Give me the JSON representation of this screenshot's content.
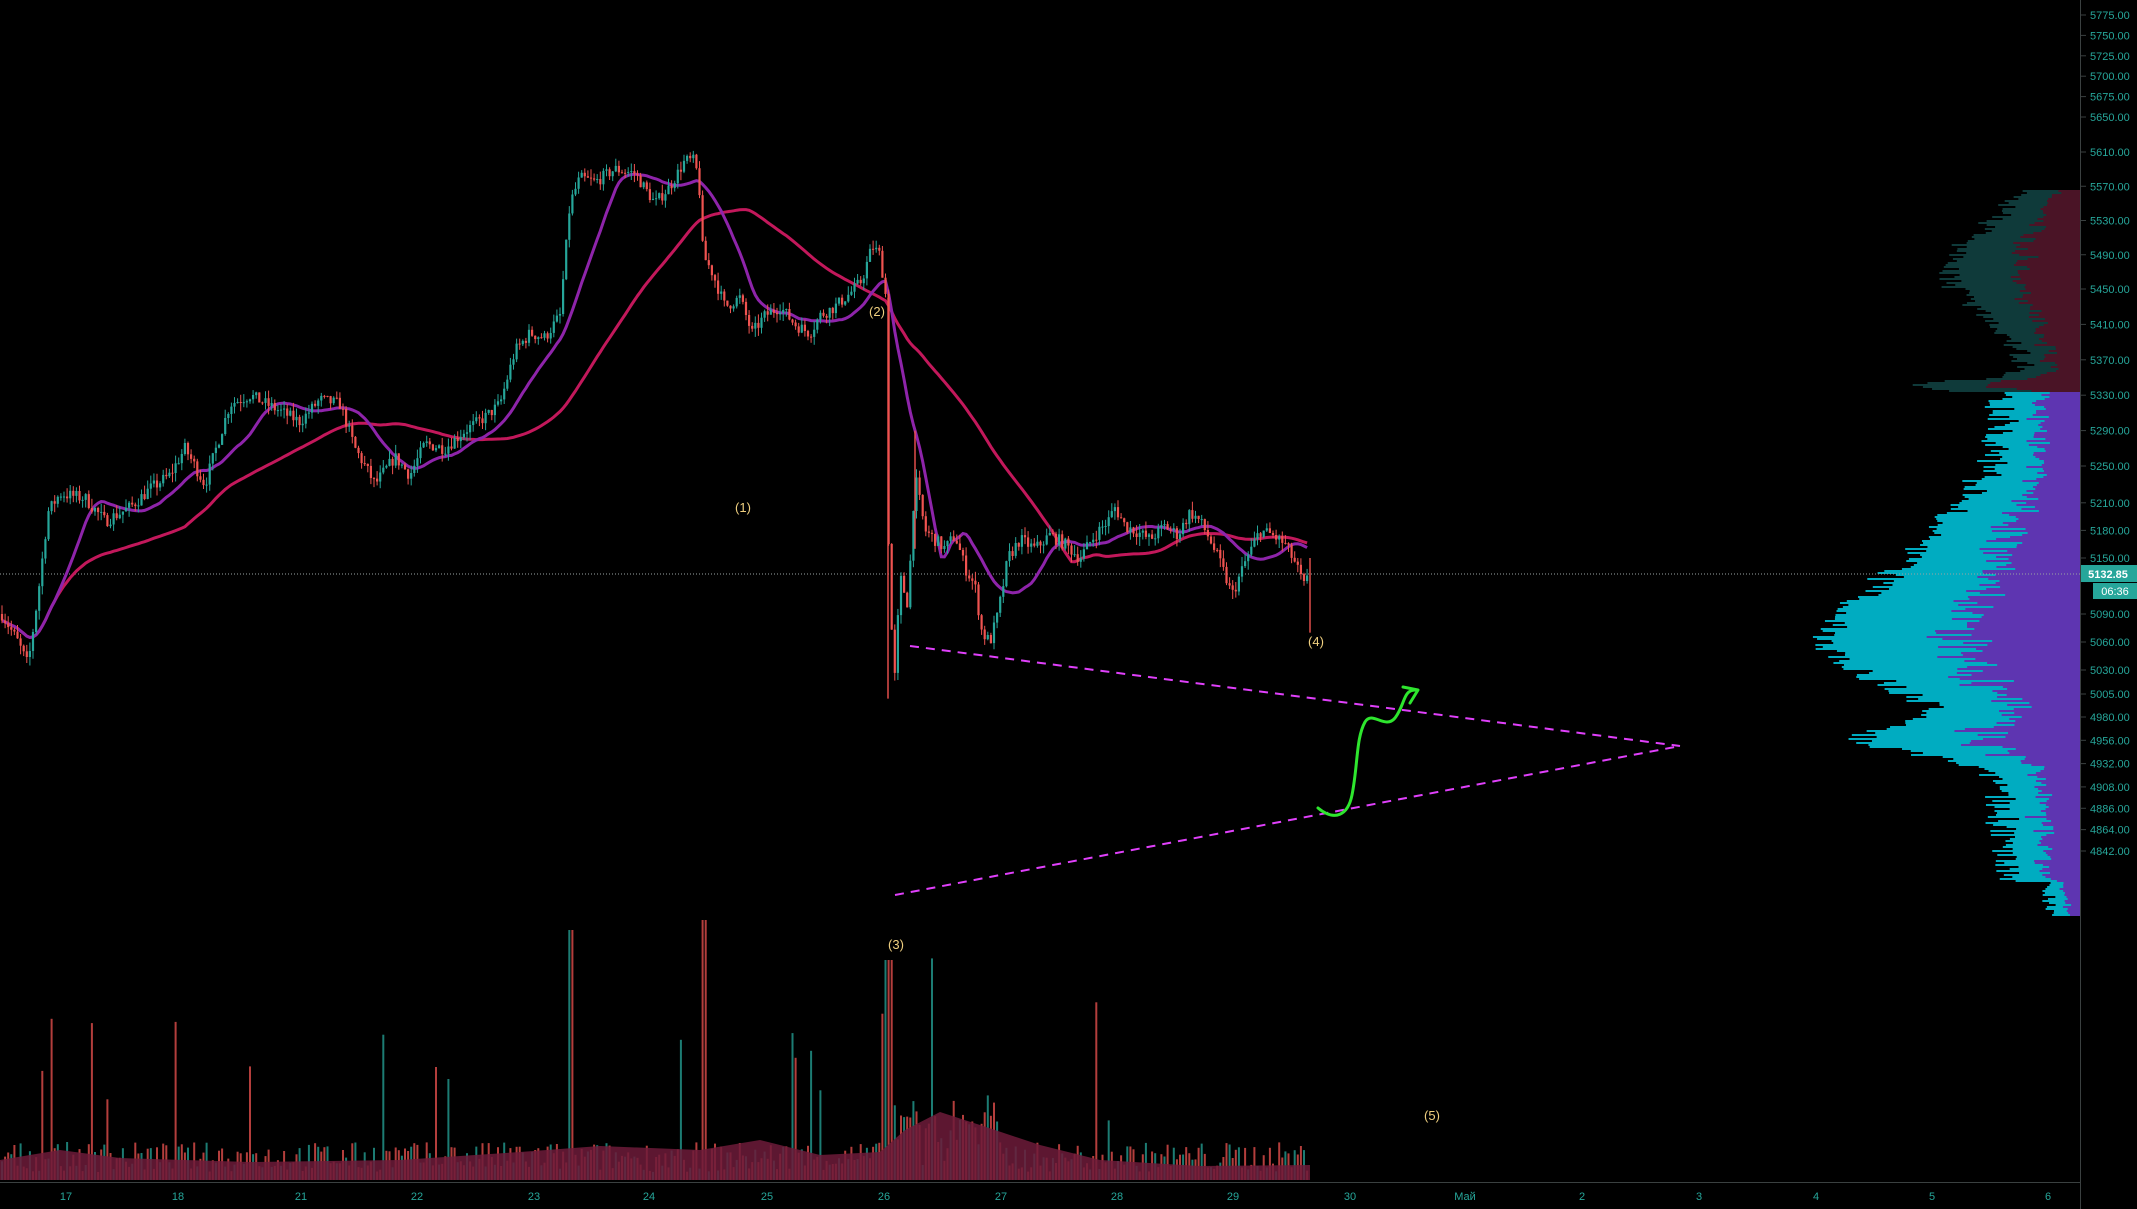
{
  "colors": {
    "background": "#000000",
    "up_candle": "#26a69a",
    "down_candle": "#ef5350",
    "ma_fast": "#8e24aa",
    "ma_slow": "#c2185b",
    "triangle": "#e040fb",
    "forecast": "#2ee62e",
    "axis_text": "#26a69a",
    "wave_label": "#f0d080",
    "volume_area": "#6d1b3a",
    "profile_up": "#00acc1",
    "profile_value_area": "#5e35b1",
    "profile_top_up": "#0f3a3a",
    "profile_top_down": "#4a1426",
    "price_badge": "#26a69a"
  },
  "price_axis": {
    "ticks": [
      "5775.00",
      "5750.00",
      "5725.00",
      "5700.00",
      "5675.00",
      "5650.00",
      "5610.00",
      "5570.00",
      "5530.00",
      "5490.00",
      "5450.00",
      "5410.00",
      "5370.00",
      "5330.00",
      "5290.00",
      "5250.00",
      "5210.00",
      "5180.00",
      "5150.00",
      "5090.00",
      "5060.00",
      "5030.00",
      "5005.00",
      "4980.00",
      "4956.00",
      "4932.00",
      "4908.00",
      "4886.00",
      "4864.00",
      "4842.00"
    ],
    "current_price": "5132.85",
    "countdown": "06:36"
  },
  "time_axis": {
    "labels": [
      "17",
      "18",
      "21",
      "22",
      "23",
      "24",
      "25",
      "26",
      "27",
      "28",
      "29",
      "30",
      "Май",
      "2",
      "3",
      "4",
      "5",
      "6"
    ]
  },
  "annotations": {
    "wave_labels": [
      "(1)",
      "(2)",
      "(3)",
      "(4)",
      "(5)"
    ]
  },
  "chart_data": {
    "type": "candlestick",
    "symbol_timeframe": "",
    "ylim": [
      4820,
      5790
    ],
    "series": [
      {
        "kind": "ohlc",
        "points": [
          {
            "t": "17",
            "c": 5085
          },
          {
            "t": "17",
            "c": 5050
          },
          {
            "t": "17",
            "c": 5190
          },
          {
            "t": "17",
            "c": 5215
          },
          {
            "t": "18",
            "c": 5205
          },
          {
            "t": "18",
            "c": 5260
          },
          {
            "t": "21",
            "c": 5340
          },
          {
            "t": "21",
            "c": 5310
          },
          {
            "t": "21",
            "c": 5325
          },
          {
            "t": "22",
            "c": 5240
          },
          {
            "t": "22",
            "c": 5300
          },
          {
            "t": "22",
            "c": 5270
          },
          {
            "t": "23",
            "c": 5320
          },
          {
            "t": "23",
            "c": 5390
          },
          {
            "t": "23",
            "c": 5570
          },
          {
            "t": "24",
            "c": 5590
          },
          {
            "t": "24",
            "c": 5610
          },
          {
            "t": "24",
            "c": 5470
          },
          {
            "t": "25",
            "c": 5420
          },
          {
            "t": "25",
            "c": 5450
          },
          {
            "t": "25",
            "c": 5410
          },
          {
            "t": "26",
            "c": 5500
          },
          {
            "t": "26",
            "c": 5080
          },
          {
            "t": "26",
            "c": 5160
          },
          {
            "t": "27",
            "c": 5060
          },
          {
            "t": "27",
            "c": 5150
          },
          {
            "t": "28",
            "c": 5200
          },
          {
            "t": "28",
            "c": 5170
          },
          {
            "t": "29",
            "c": 5190
          },
          {
            "t": "29",
            "c": 5110
          },
          {
            "t": "29",
            "c": 5175
          },
          {
            "t": "29",
            "c": 5132.85
          }
        ]
      }
    ],
    "volume_present": true,
    "volume_profile_present": true,
    "grid": false
  }
}
